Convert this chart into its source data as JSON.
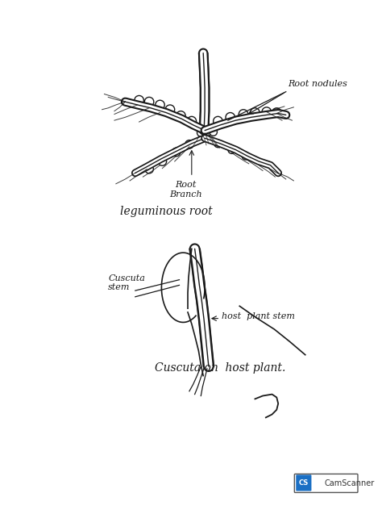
{
  "bg_color": "#ffffff",
  "line_color": "#1a1a1a",
  "label_root_nodules": "Root nodules",
  "label_root_branch": "Root\nBranch",
  "diagram1_label": "leguminous root",
  "diagram2_label": "Cuscuta on  host plant.",
  "label_cuscuta_stem": "Cuscuta\nstem",
  "label_host_stem": "host  plant stem",
  "camscanner_text": "CamScanner"
}
